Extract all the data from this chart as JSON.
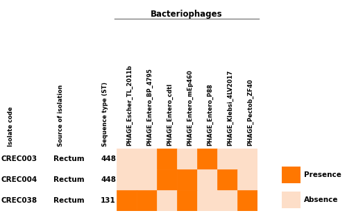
{
  "isolates": [
    "CREC003",
    "CREC004",
    "CREC038"
  ],
  "sources": [
    "Rectum",
    "Rectum",
    "Rectum"
  ],
  "sequence_types": [
    "448",
    "448",
    "131"
  ],
  "phages": [
    "PHAGE_Escher_TL_2011b",
    "PHAGE_Entero_BP_4795",
    "PHAGE_Entero_cdtI",
    "PHAGE_Entero_mEp460",
    "PHAGE_Entero_P88",
    "PHAGE_Klebsi_4LV2017",
    "PHAGE_Pectob_ZF40"
  ],
  "heatmap": [
    [
      0,
      0,
      1,
      0,
      1,
      0,
      0
    ],
    [
      0,
      0,
      1,
      1,
      0,
      1,
      0
    ],
    [
      1,
      1,
      0,
      1,
      0,
      0,
      1
    ]
  ],
  "presence_color": "#FF7700",
  "absence_color": "#FDDEC8",
  "title": "Bacteriophages",
  "label_isolate": "Isolate code",
  "label_source": "Source of isolation",
  "label_st": "Sequence type (ST)",
  "legend_presence": "Presence",
  "legend_absence": "Absence",
  "figsize": [
    5.0,
    3.17
  ],
  "dpi": 100
}
